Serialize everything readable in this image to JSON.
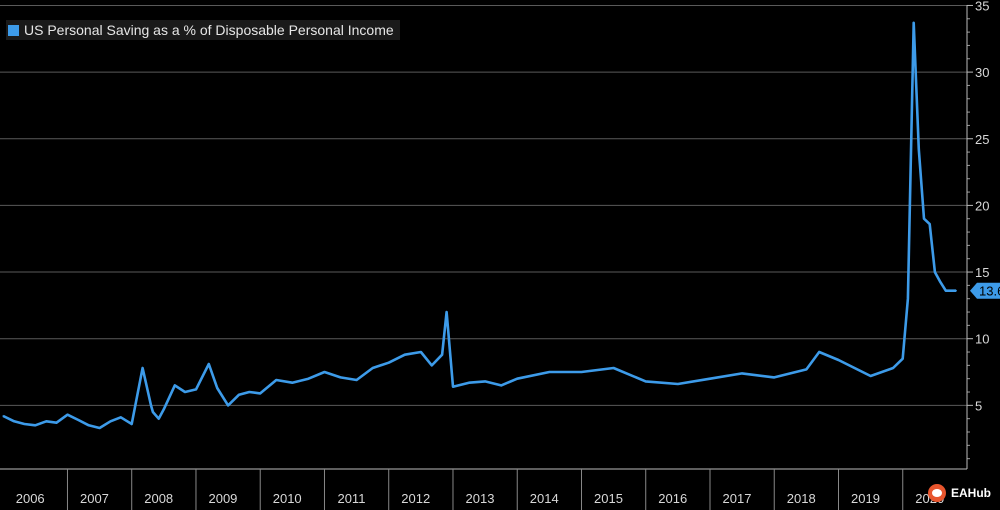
{
  "chart_data": {
    "type": "line",
    "title": "",
    "xlabel": "",
    "ylabel": "",
    "ylim": [
      0,
      35
    ],
    "yticks": [
      5,
      10,
      15,
      20,
      25,
      30,
      35
    ],
    "xlim": [
      2005.95,
      2021.0
    ],
    "xtick_labels": [
      "2006",
      "2007",
      "2008",
      "2009",
      "2010",
      "2011",
      "2012",
      "2013",
      "2014",
      "2015",
      "2016",
      "2017",
      "2018",
      "2019",
      "2020"
    ],
    "grid": true,
    "legend_position": "top-left",
    "last_value_label": "13.6",
    "series": [
      {
        "name": "US Personal Saving as a % of Disposable Personal Income",
        "color": "#3d9be9",
        "x": [
          2006.0,
          2006.17,
          2006.33,
          2006.5,
          2006.67,
          2006.83,
          2007.0,
          2007.17,
          2007.33,
          2007.5,
          2007.67,
          2007.83,
          2008.0,
          2008.17,
          2008.3,
          2008.33,
          2008.42,
          2008.5,
          2008.67,
          2008.83,
          2009.0,
          2009.2,
          2009.33,
          2009.5,
          2009.67,
          2009.83,
          2010.0,
          2010.25,
          2010.5,
          2010.75,
          2011.0,
          2011.25,
          2011.5,
          2011.75,
          2012.0,
          2012.25,
          2012.5,
          2012.67,
          2012.83,
          2012.9,
          2013.0,
          2013.25,
          2013.5,
          2013.75,
          2014.0,
          2014.5,
          2015.0,
          2015.5,
          2016.0,
          2016.5,
          2017.0,
          2017.5,
          2018.0,
          2018.5,
          2018.7,
          2019.0,
          2019.5,
          2019.85,
          2020.0,
          2020.08,
          2020.17,
          2020.25,
          2020.33,
          2020.42,
          2020.5,
          2020.58,
          2020.67,
          2020.75,
          2020.83
        ],
        "values": [
          4.2,
          3.8,
          3.6,
          3.5,
          3.8,
          3.7,
          4.3,
          3.9,
          3.5,
          3.3,
          3.8,
          4.1,
          3.6,
          7.8,
          5.0,
          4.5,
          4.0,
          4.7,
          6.5,
          6.0,
          6.2,
          8.1,
          6.3,
          5.0,
          5.8,
          6.0,
          5.9,
          6.9,
          6.7,
          7.0,
          7.5,
          7.1,
          6.9,
          7.8,
          8.2,
          8.8,
          9.0,
          8.0,
          8.8,
          12.0,
          6.4,
          6.7,
          6.8,
          6.5,
          7.0,
          7.5,
          7.5,
          7.8,
          6.8,
          6.6,
          7.0,
          7.4,
          7.1,
          7.7,
          9.0,
          8.4,
          7.2,
          7.8,
          8.5,
          13.0,
          33.7,
          24.2,
          19.0,
          18.6,
          15.0,
          14.3,
          13.6,
          13.6,
          13.6
        ]
      }
    ]
  },
  "watermark": {
    "text": "EAHub"
  }
}
